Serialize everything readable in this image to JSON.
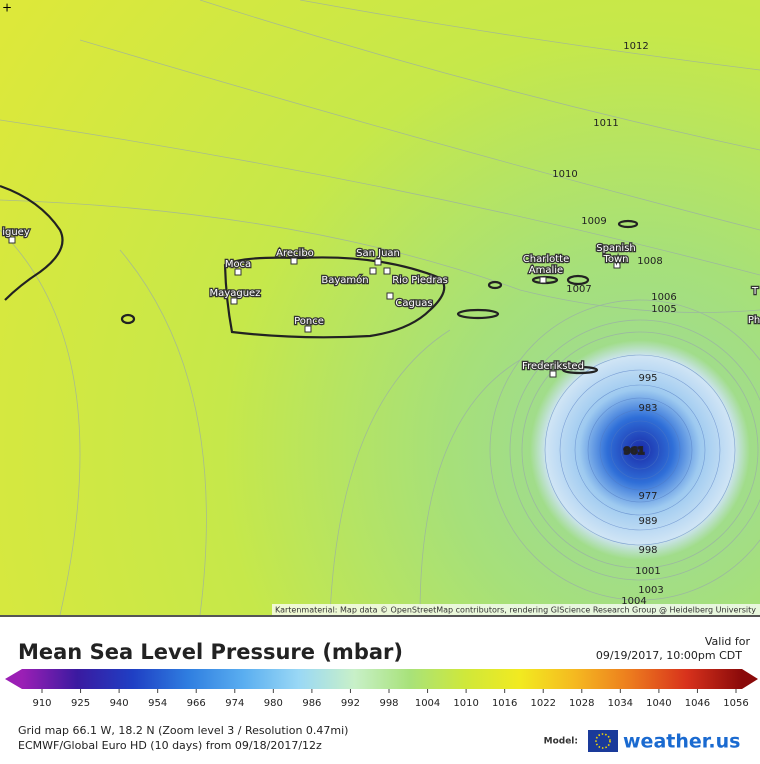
{
  "map": {
    "contour_labels": [
      1012,
      1011,
      1010,
      1009,
      1008,
      1007,
      1006,
      1005,
      995,
      983,
      961,
      977,
      989,
      998,
      1001,
      1003,
      1004
    ],
    "cities": [
      [
        "iguey"
      ],
      [
        "Moca"
      ],
      [
        "Arecibo"
      ],
      [
        "San Juan"
      ],
      [
        "Mayaguez"
      ],
      [
        "Bayamón"
      ],
      [
        "Rio Piedras"
      ],
      [
        "Caguas"
      ],
      [
        "Ponce"
      ],
      [
        "Charlotte",
        "Amalie"
      ],
      [
        "Spanish",
        "Town"
      ],
      [
        "Frederiksted"
      ],
      [
        "T"
      ],
      [
        "Ph"
      ]
    ],
    "attribution": "Kartenmaterial: Map data © OpenStreetMap contributors, rendering GIScience Research Group @ Heidelberg University"
  },
  "header": {
    "title": "Mean Sea Level Pressure (mbar)",
    "valid_label": "Valid for",
    "valid_time": "09/19/2017, 10:00pm CDT"
  },
  "colorbar": {
    "ticks": [
      910,
      925,
      940,
      954,
      966,
      974,
      980,
      986,
      992,
      998,
      1004,
      1010,
      1016,
      1022,
      1028,
      1034,
      1040,
      1046,
      1056
    ],
    "colors": [
      "#9b1fb5",
      "#3a1aa0",
      "#1f3fc4",
      "#2f7ee0",
      "#5aaef0",
      "#9ad8f5",
      "#c8f0c8",
      "#a8e27a",
      "#cfe83a",
      "#f2ea20",
      "#f5b820",
      "#ec7a1e",
      "#d8321c",
      "#8a0a0a"
    ]
  },
  "footer": {
    "grid": "Grid map 66.1 W, 18.2 N (Zoom level 3 / Resolution 0.47mi)",
    "model_run": "ECMWF/Global Euro HD (10 days) from 09/18/2017/12z",
    "model_label": "Model:",
    "brand": "weather.us"
  }
}
